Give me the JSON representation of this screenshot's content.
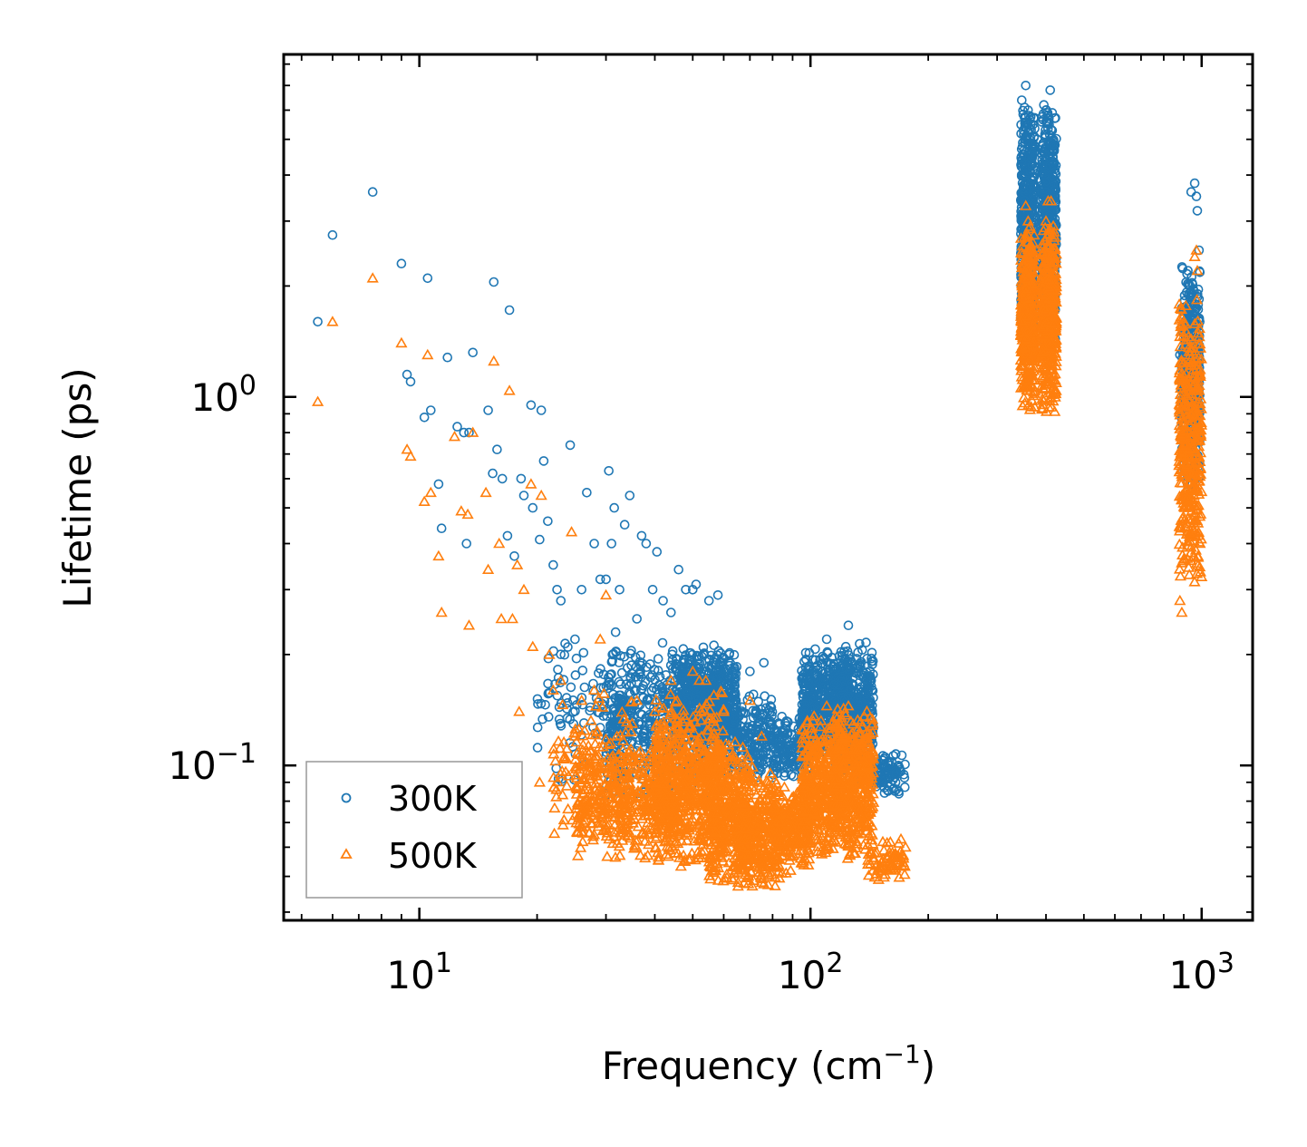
{
  "chart_data": {
    "type": "scatter",
    "xscale": "log",
    "yscale": "log",
    "xlabel": "Frequency (cm",
    "xlabel_sup": "−1",
    "xlabel_close": ")",
    "ylabel": "Lifetime (ps)",
    "xlim": [
      4.5,
      1350
    ],
    "ylim": [
      0.038,
      8.5
    ],
    "x_ticks": [
      {
        "value": 10,
        "base": "10",
        "exp": "1"
      },
      {
        "value": 100,
        "base": "10",
        "exp": "2"
      },
      {
        "value": 1000,
        "base": "10",
        "exp": "3"
      }
    ],
    "y_ticks": [
      {
        "value": 0.1,
        "base": "10",
        "exp": "−1"
      },
      {
        "value": 1,
        "base": "10",
        "exp": "0"
      }
    ],
    "legend_position": "lower-left",
    "series": [
      {
        "name": "300K",
        "marker": "circle",
        "color": "#1f77b4",
        "points": [
          [
            5.5,
            1.6
          ],
          [
            6.0,
            2.75
          ],
          [
            7.6,
            3.6
          ],
          [
            9.0,
            2.3
          ],
          [
            9.3,
            1.15
          ],
          [
            9.5,
            1.1
          ],
          [
            10.3,
            0.88
          ],
          [
            10.5,
            2.1
          ],
          [
            10.7,
            0.92
          ],
          [
            11.2,
            0.58
          ],
          [
            11.4,
            0.44
          ],
          [
            11.8,
            1.28
          ],
          [
            12.5,
            0.83
          ],
          [
            13.0,
            0.8
          ],
          [
            13.4,
            0.8
          ],
          [
            13.7,
            1.32
          ],
          [
            13.2,
            0.4
          ],
          [
            15.0,
            0.92
          ],
          [
            15.4,
            0.62
          ],
          [
            15.5,
            2.05
          ],
          [
            15.8,
            0.72
          ],
          [
            16.3,
            0.6
          ],
          [
            17.0,
            1.72
          ],
          [
            16.8,
            0.42
          ],
          [
            17.5,
            0.37
          ],
          [
            18.2,
            0.6
          ],
          [
            18.5,
            0.54
          ],
          [
            19.3,
            0.95
          ],
          [
            19.5,
            0.5
          ],
          [
            20.5,
            0.92
          ],
          [
            20.8,
            0.67
          ],
          [
            20.3,
            0.41
          ],
          [
            21.3,
            0.46
          ],
          [
            22.0,
            0.35
          ],
          [
            22.5,
            0.3
          ],
          [
            23.0,
            0.28
          ],
          [
            24.3,
            0.74
          ],
          [
            25.0,
            0.22
          ],
          [
            26.0,
            0.3
          ],
          [
            26.8,
            0.55
          ],
          [
            28.0,
            0.4
          ],
          [
            29.0,
            0.32
          ],
          [
            30.0,
            0.32
          ],
          [
            30.5,
            0.63
          ],
          [
            31.0,
            0.4
          ],
          [
            31.5,
            0.5
          ],
          [
            32.5,
            0.3
          ],
          [
            33.5,
            0.45
          ],
          [
            34.5,
            0.54
          ],
          [
            36.0,
            0.25
          ],
          [
            37.0,
            0.42
          ],
          [
            38.0,
            0.4
          ],
          [
            39.5,
            0.3
          ],
          [
            40.5,
            0.38
          ],
          [
            42.0,
            0.28
          ],
          [
            44.0,
            0.26
          ],
          [
            46.0,
            0.34
          ],
          [
            48.0,
            0.3
          ],
          [
            50.0,
            0.3
          ],
          [
            51.0,
            0.31
          ],
          [
            55.0,
            0.28
          ],
          [
            58.0,
            0.29
          ],
          [
            62.0,
            0.2
          ],
          [
            70.0,
            0.18
          ],
          [
            76.0,
            0.19
          ],
          [
            110.0,
            0.22
          ],
          [
            125.0,
            0.24
          ],
          [
            150.0,
            0.1
          ],
          [
            160.0,
            0.1
          ],
          [
            165.0,
            0.09
          ],
          [
            168.0,
            0.085
          ],
          [
            355.0,
            7.0
          ],
          [
            360.0,
            6.0
          ],
          [
            362.0,
            5.8
          ],
          [
            370.0,
            4.5
          ],
          [
            380.0,
            5.0
          ],
          [
            395.0,
            6.2
          ],
          [
            400.0,
            6.0
          ],
          [
            410.0,
            6.8
          ],
          [
            415.0,
            5.9
          ],
          [
            420.0,
            4.8
          ],
          [
            880.0,
            1.3
          ],
          [
            890.0,
            1.1
          ],
          [
            940.0,
            3.6
          ],
          [
            960.0,
            3.8
          ],
          [
            970.0,
            3.5
          ],
          [
            975.0,
            3.2
          ],
          [
            985.0,
            2.5
          ]
        ],
        "clusters": [
          {
            "x": [
              20,
              35
            ],
            "y": [
              0.08,
              0.26
            ],
            "n": 120
          },
          {
            "x": [
              30,
              60
            ],
            "y": [
              0.08,
              0.22
            ],
            "n": 550
          },
          {
            "x": [
              45,
              65
            ],
            "y": [
              0.11,
              0.21
            ],
            "n": 450
          },
          {
            "x": [
              60,
              80
            ],
            "y": [
              0.09,
              0.16
            ],
            "n": 220
          },
          {
            "x": [
              80,
              100
            ],
            "y": [
              0.09,
              0.14
            ],
            "n": 150
          },
          {
            "x": [
              95,
              125
            ],
            "y": [
              0.1,
              0.21
            ],
            "n": 500
          },
          {
            "x": [
              115,
              145
            ],
            "y": [
              0.09,
              0.22
            ],
            "n": 450
          },
          {
            "x": [
              140,
              175
            ],
            "y": [
              0.08,
              0.11
            ],
            "n": 100
          },
          {
            "x": [
              345,
              375
            ],
            "y": [
              1.3,
              6.5
            ],
            "n": 500
          },
          {
            "x": [
              390,
              425
            ],
            "y": [
              1.3,
              6.6
            ],
            "n": 500
          },
          {
            "x": [
              890,
              990
            ],
            "y": [
              0.55,
              2.5
            ],
            "n": 450
          }
        ]
      },
      {
        "name": "500K",
        "marker": "triangle",
        "color": "#ff7f0e",
        "points": [
          [
            5.5,
            0.97
          ],
          [
            6.0,
            1.6
          ],
          [
            7.6,
            2.1
          ],
          [
            9.0,
            1.4
          ],
          [
            9.3,
            0.72
          ],
          [
            9.5,
            0.69
          ],
          [
            10.3,
            0.52
          ],
          [
            10.5,
            1.3
          ],
          [
            10.7,
            0.55
          ],
          [
            11.2,
            0.37
          ],
          [
            11.4,
            0.26
          ],
          [
            12.3,
            0.78
          ],
          [
            12.8,
            0.49
          ],
          [
            13.3,
            0.48
          ],
          [
            13.4,
            0.24
          ],
          [
            13.7,
            0.8
          ],
          [
            14.8,
            0.55
          ],
          [
            15.0,
            0.34
          ],
          [
            15.5,
            1.25
          ],
          [
            16.0,
            0.4
          ],
          [
            16.2,
            0.25
          ],
          [
            17.0,
            1.04
          ],
          [
            17.3,
            0.25
          ],
          [
            17.8,
            0.35
          ],
          [
            18.0,
            0.14
          ],
          [
            18.5,
            0.3
          ],
          [
            19.3,
            0.58
          ],
          [
            19.5,
            0.21
          ],
          [
            20.5,
            0.54
          ],
          [
            20.3,
            0.09
          ],
          [
            21.5,
            0.2
          ],
          [
            22.0,
            0.16
          ],
          [
            23.0,
            0.17
          ],
          [
            24.5,
            0.43
          ],
          [
            25.0,
            0.12
          ],
          [
            26.0,
            0.15
          ],
          [
            27.5,
            0.11
          ],
          [
            28.0,
            0.16
          ],
          [
            29.0,
            0.22
          ],
          [
            30.0,
            0.29
          ],
          [
            32.0,
            0.12
          ],
          [
            35.0,
            0.13
          ],
          [
            36.0,
            0.15
          ],
          [
            40.0,
            0.14
          ],
          [
            44.0,
            0.17
          ],
          [
            50.0,
            0.18
          ],
          [
            52.0,
            0.17
          ],
          [
            54.0,
            0.17
          ],
          [
            60.0,
            0.14
          ],
          [
            70.0,
            0.15
          ],
          [
            75.0,
            0.12
          ],
          [
            110.0,
            0.145
          ],
          [
            125.0,
            0.145
          ],
          [
            130.0,
            0.11
          ],
          [
            160.0,
            0.062
          ],
          [
            175.0,
            0.06
          ],
          [
            355.0,
            3.3
          ],
          [
            360.0,
            3.0
          ],
          [
            364.0,
            2.9
          ],
          [
            370.0,
            2.5
          ],
          [
            400.0,
            3.0
          ],
          [
            405.0,
            3.4
          ],
          [
            412.0,
            3.4
          ],
          [
            420.0,
            2.8
          ],
          [
            880.0,
            0.28
          ],
          [
            890.0,
            0.26
          ],
          [
            960.0,
            2.4
          ],
          [
            970.0,
            2.5
          ],
          [
            975.0,
            2.2
          ],
          [
            990.0,
            0.4
          ]
        ],
        "clusters": [
          {
            "x": [
              22,
              35
            ],
            "y": [
              0.06,
              0.16
            ],
            "n": 120
          },
          {
            "x": [
              25,
              45
            ],
            "y": [
              0.055,
              0.12
            ],
            "n": 450
          },
          {
            "x": [
              40,
              60
            ],
            "y": [
              0.05,
              0.16
            ],
            "n": 650
          },
          {
            "x": [
              55,
              70
            ],
            "y": [
              0.045,
              0.12
            ],
            "n": 350
          },
          {
            "x": [
              65,
              85
            ],
            "y": [
              0.045,
              0.1
            ],
            "n": 350
          },
          {
            "x": [
              80,
              100
            ],
            "y": [
              0.05,
              0.09
            ],
            "n": 250
          },
          {
            "x": [
              95,
              120
            ],
            "y": [
              0.055,
              0.14
            ],
            "n": 400
          },
          {
            "x": [
              115,
              145
            ],
            "y": [
              0.055,
              0.15
            ],
            "n": 450
          },
          {
            "x": [
              140,
              175
            ],
            "y": [
              0.048,
              0.065
            ],
            "n": 70
          },
          {
            "x": [
              345,
              375
            ],
            "y": [
              0.9,
              3.0
            ],
            "n": 450
          },
          {
            "x": [
              390,
              425
            ],
            "y": [
              0.9,
              3.0
            ],
            "n": 450
          },
          {
            "x": [
              875,
              1000
            ],
            "y": [
              0.28,
              2.0
            ],
            "n": 400
          }
        ]
      }
    ]
  }
}
